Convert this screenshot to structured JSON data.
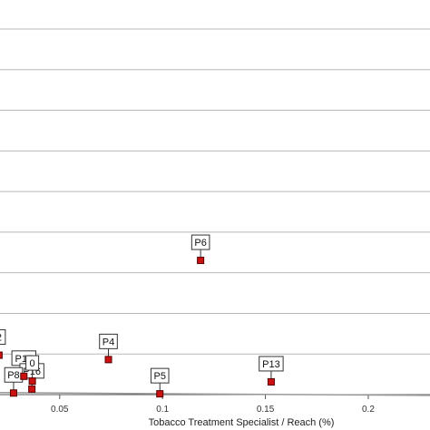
{
  "chart_data": {
    "type": "scatter",
    "title": "",
    "xlabel": "Tobacco Treatment Specialist / Reach (%)",
    "ylabel": "",
    "xlim": [
      0.021,
      0.23
    ],
    "ylim": [
      0,
      1
    ],
    "x_ticks": [
      {
        "value": 0.05,
        "label": "0.05"
      },
      {
        "value": 0.1,
        "label": "0.1"
      },
      {
        "value": 0.15,
        "label": "0.15"
      },
      {
        "value": 0.2,
        "label": "0.2"
      }
    ],
    "y_gridlines": [
      0.102,
      0.204,
      0.306,
      0.408,
      0.51,
      0.612,
      0.714,
      0.816,
      0.918
    ],
    "grid": true,
    "marker_color": "#cc1111",
    "marker_edge_color": "#550000",
    "trend_line_color": "#999999",
    "trend_line": [
      {
        "x": 0.021,
        "y": 0.005
      },
      {
        "x": 0.23,
        "y": -0.002
      }
    ],
    "points": [
      {
        "label": "P6",
        "x": 0.1185,
        "y": 0.337
      },
      {
        "label": "P4",
        "x": 0.0737,
        "y": 0.088
      },
      {
        "label": "P13",
        "x": 0.1528,
        "y": 0.032
      },
      {
        "label": "P5",
        "x": 0.0987,
        "y": 0.002
      },
      {
        "label": "P15",
        "x": 0.0326,
        "y": 0.046
      },
      {
        "label": "P16",
        "x": 0.0365,
        "y": 0.014
      },
      {
        "label": "P8",
        "x": 0.0276,
        "y": 0.004
      },
      {
        "label": "0",
        "x": 0.0367,
        "y": 0.034
      },
      {
        "label": "2",
        "x": 0.0205,
        "y": 0.099
      }
    ]
  }
}
